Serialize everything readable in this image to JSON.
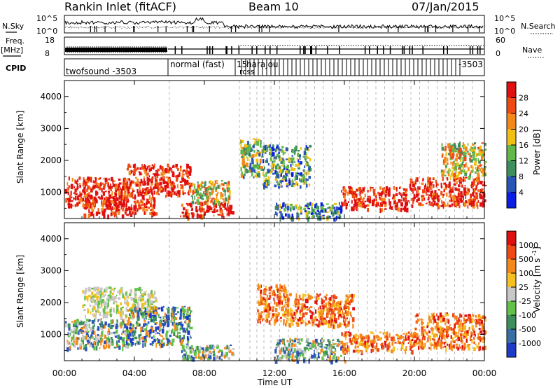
{
  "header": {
    "station": "Rankin Inlet (fitACF)",
    "beam": "Beam 10",
    "date": "07/Jan/2015"
  },
  "strip": {
    "nsky_label": "N.Sky",
    "nsky_top": "10^5",
    "nsky_bottom": "10^0",
    "nsearch_label": "N.Search",
    "nsearch_top": "10^5",
    "nsearch_bottom": "10^0",
    "freq_label": "Freq.",
    "freq_unit": "[MHz]",
    "freq_top": "18",
    "freq_bottom": "8",
    "nave_label": "Nave",
    "nave_top": "60",
    "nave_bottom": "0",
    "cpid_label": "CPID",
    "cpid_seg1": "twofsound -3503",
    "cpid_seg2": "normal (fast)",
    "cpid_seg3": "15",
    "cpid_seg4": "harajou",
    "cpid_seg5": "rcss",
    "cpid_seg6": "-3503"
  },
  "chart_data": [
    {
      "type": "heatmap",
      "title": "",
      "ylabel": "Slant Range [km]",
      "xlabel": "Time UT",
      "x_ticks": [
        "00:00",
        "04:00",
        "08:00",
        "12:00",
        "16:00",
        "20:00",
        "00:00"
      ],
      "x_range_hours": [
        0,
        24
      ],
      "ylim": [
        180,
        4500
      ],
      "y_ticks": [
        1000,
        2000,
        3000,
        4000
      ],
      "colorbar": {
        "label": "Power [dB]",
        "ticks": [
          "4",
          "8",
          "12",
          "16",
          "20",
          "24",
          "28"
        ],
        "colors": [
          "#0a1ee6",
          "#2a55b8",
          "#3f8f5e",
          "#63b84a",
          "#f0c012",
          "#f5881a",
          "#f04a14",
          "#e01010"
        ]
      },
      "echo_regions": [
        {
          "t0": 0.0,
          "t1": 3.6,
          "r0": 600,
          "r1": 1500,
          "level": "high"
        },
        {
          "t0": 1.0,
          "t1": 5.2,
          "r0": 300,
          "r1": 900,
          "level": "high"
        },
        {
          "t0": 3.5,
          "t1": 7.2,
          "r0": 900,
          "r1": 1900,
          "level": "high"
        },
        {
          "t0": 6.6,
          "t1": 9.6,
          "r0": 250,
          "r1": 700,
          "level": "high"
        },
        {
          "t0": 7.2,
          "t1": 9.4,
          "r0": 700,
          "r1": 1400,
          "level": "mid"
        },
        {
          "t0": 10.0,
          "t1": 11.3,
          "r0": 1500,
          "r1": 2700,
          "level": "mixed"
        },
        {
          "t0": 11.3,
          "t1": 14.0,
          "r0": 1200,
          "r1": 2500,
          "level": "low"
        },
        {
          "t0": 12.0,
          "t1": 15.8,
          "r0": 200,
          "r1": 700,
          "level": "low"
        },
        {
          "t0": 15.8,
          "t1": 19.6,
          "r0": 500,
          "r1": 1200,
          "level": "high"
        },
        {
          "t0": 19.6,
          "t1": 24.0,
          "r0": 600,
          "r1": 1500,
          "level": "high"
        },
        {
          "t0": 21.5,
          "t1": 24.0,
          "r0": 1500,
          "r1": 2600,
          "level": "mid"
        }
      ]
    },
    {
      "type": "heatmap",
      "title": "",
      "ylabel": "Slant Range [km]",
      "xlabel": "Time UT",
      "x_ticks": [
        "00:00",
        "04:00",
        "08:00",
        "12:00",
        "16:00",
        "20:00",
        "00:00"
      ],
      "x_range_hours": [
        0,
        24
      ],
      "ylim": [
        180,
        4500
      ],
      "y_ticks": [
        1000,
        2000,
        3000,
        4000
      ],
      "colorbar": {
        "label": "Velocity [m s^-1]",
        "ticks": [
          "1000",
          "500",
          "100",
          "25",
          "-25",
          "-100",
          "-500",
          "-1000"
        ],
        "colors": [
          "#1e3cc8",
          "#3a6ea5",
          "#3f8f5e",
          "#63c04a",
          "#c8c8c8",
          "#f5c020",
          "#f5881a",
          "#f04a14",
          "#e01010"
        ]
      },
      "echo_regions": [
        {
          "t0": 0.0,
          "t1": 3.6,
          "r0": 600,
          "r1": 1500,
          "level": "mixed-green"
        },
        {
          "t0": 1.0,
          "t1": 5.2,
          "r0": 1600,
          "r1": 2500,
          "level": "grey"
        },
        {
          "t0": 3.5,
          "t1": 7.2,
          "r0": 700,
          "r1": 1900,
          "level": "mixed-blue"
        },
        {
          "t0": 6.6,
          "t1": 9.6,
          "r0": 250,
          "r1": 700,
          "level": "mixed-green"
        },
        {
          "t0": 11.0,
          "t1": 12.6,
          "r0": 1400,
          "r1": 2600,
          "level": "orange"
        },
        {
          "t0": 12.5,
          "t1": 16.5,
          "r0": 1300,
          "r1": 2300,
          "level": "orange"
        },
        {
          "t0": 12.0,
          "t1": 16.0,
          "r0": 200,
          "r1": 900,
          "level": "mixed-green"
        },
        {
          "t0": 15.8,
          "t1": 20.0,
          "r0": 500,
          "r1": 1100,
          "level": "orange"
        },
        {
          "t0": 20.0,
          "t1": 24.0,
          "r0": 600,
          "r1": 1700,
          "level": "orange"
        }
      ]
    }
  ]
}
